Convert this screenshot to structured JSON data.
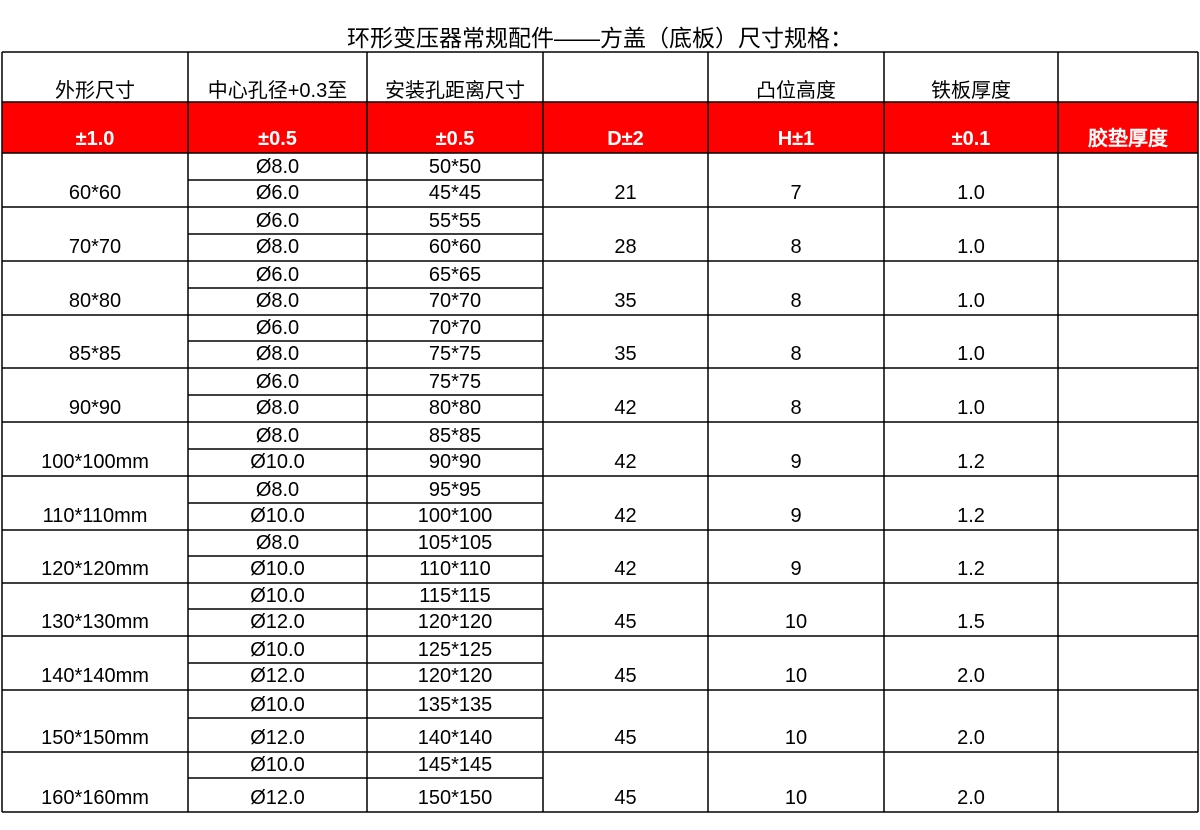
{
  "title": "环形变压器常规配件——方盖（底板）尺寸规格：",
  "header": {
    "row1": [
      "外形尺寸",
      "中心孔径+0.3至",
      "安装孔距离尺寸",
      "凸位高度",
      "铁板厚度"
    ],
    "row2": [
      "±1.0",
      "±0.5",
      "±0.5",
      "D±2",
      "H±1",
      "±0.1",
      "胶垫厚度"
    ]
  },
  "rows": [
    {
      "size": "60*60",
      "holes": [
        "Ø8.0",
        "Ø6.0"
      ],
      "spacing": [
        "50*50",
        "45*45"
      ],
      "d": "21",
      "h": "7",
      "t": "1.0"
    },
    {
      "size": "70*70",
      "holes": [
        "Ø6.0",
        "Ø8.0"
      ],
      "spacing": [
        "55*55",
        "60*60"
      ],
      "d": "28",
      "h": "8",
      "t": "1.0"
    },
    {
      "size": "80*80",
      "holes": [
        "Ø6.0",
        "Ø8.0"
      ],
      "spacing": [
        "65*65",
        "70*70"
      ],
      "d": "35",
      "h": "8",
      "t": "1.0"
    },
    {
      "size": "85*85",
      "holes": [
        "Ø6.0",
        "Ø8.0"
      ],
      "spacing": [
        "70*70",
        "75*75"
      ],
      "d": "35",
      "h": "8",
      "t": "1.0"
    },
    {
      "size": "90*90",
      "holes": [
        "Ø6.0",
        "Ø8.0"
      ],
      "spacing": [
        "75*75",
        "80*80"
      ],
      "d": "42",
      "h": "8",
      "t": "1.0"
    },
    {
      "size": "100*100mm",
      "holes": [
        "Ø8.0",
        "Ø10.0"
      ],
      "spacing": [
        "85*85",
        "90*90"
      ],
      "d": "42",
      "h": "9",
      "t": "1.2"
    },
    {
      "size": "110*110mm",
      "holes": [
        "Ø8.0",
        "Ø10.0"
      ],
      "spacing": [
        "95*95",
        "100*100"
      ],
      "d": "42",
      "h": "9",
      "t": "1.2"
    },
    {
      "size": "120*120mm",
      "holes": [
        "Ø8.0",
        "Ø10.0"
      ],
      "spacing": [
        "105*105",
        "110*110"
      ],
      "d": "42",
      "h": "9",
      "t": "1.2"
    },
    {
      "size": "130*130mm",
      "holes": [
        "Ø10.0",
        "Ø12.0"
      ],
      "spacing": [
        "115*115",
        "120*120"
      ],
      "d": "45",
      "h": "10",
      "t": "1.5"
    },
    {
      "size": "140*140mm",
      "holes": [
        "Ø10.0",
        "Ø12.0"
      ],
      "spacing": [
        "125*125",
        "120*120"
      ],
      "d": "45",
      "h": "10",
      "t": "2.0"
    },
    {
      "size": "150*150mm",
      "holes": [
        "Ø10.0",
        "Ø12.0"
      ],
      "spacing": [
        "135*135",
        "140*140"
      ],
      "d": "45",
      "h": "10",
      "t": "2.0"
    },
    {
      "size": "160*160mm",
      "holes": [
        "Ø10.0",
        "Ø12.0"
      ],
      "spacing": [
        "145*145",
        "150*150"
      ],
      "d": "45",
      "h": "10",
      "t": "2.0"
    }
  ]
}
